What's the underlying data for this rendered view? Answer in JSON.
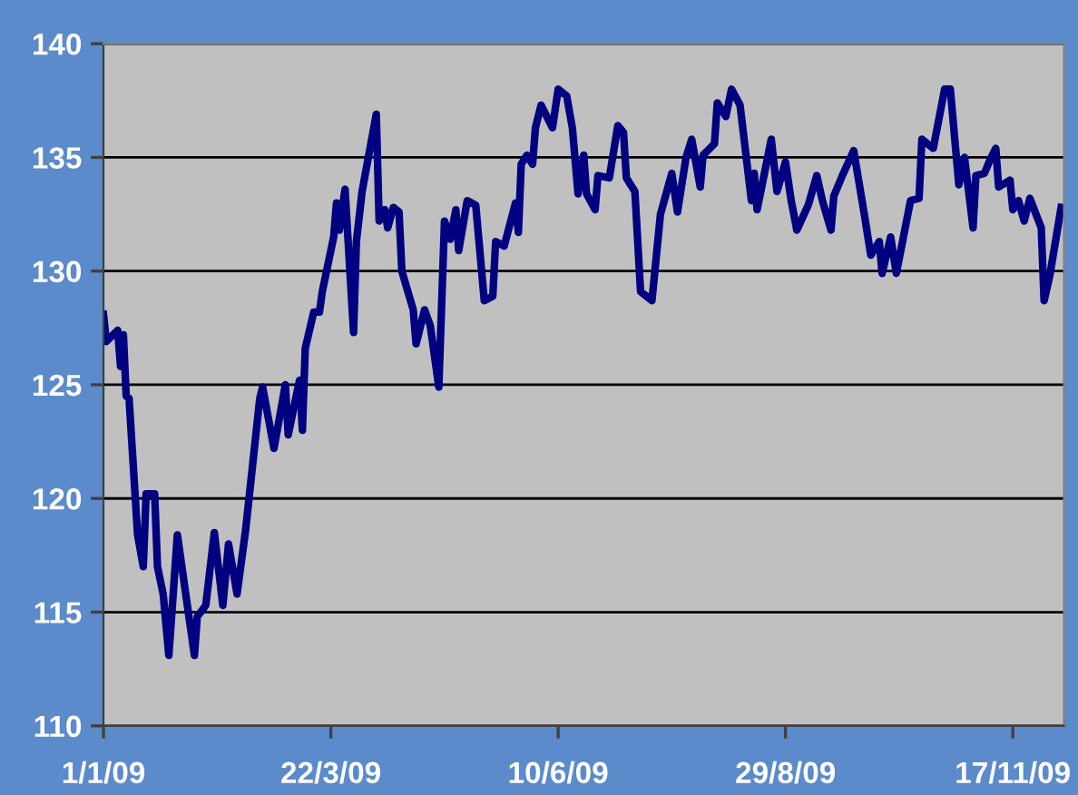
{
  "chart_data": {
    "type": "line",
    "x": [
      "2009-01-01",
      "2009-01-02",
      "2009-01-06",
      "2009-01-07",
      "2009-01-08",
      "2009-01-09",
      "2009-01-10",
      "2009-01-13",
      "2009-01-15",
      "2009-01-16",
      "2009-01-19",
      "2009-01-20",
      "2009-01-22",
      "2009-01-24",
      "2009-01-27",
      "2009-02-02",
      "2009-02-03",
      "2009-02-06",
      "2009-02-09",
      "2009-02-12",
      "2009-02-14",
      "2009-02-17",
      "2009-02-20",
      "2009-02-25",
      "2009-02-26",
      "2009-03-02",
      "2009-03-06",
      "2009-03-07",
      "2009-03-11",
      "2009-03-12",
      "2009-03-13",
      "2009-03-16",
      "2009-03-18",
      "2009-03-19",
      "2009-03-23",
      "2009-03-24",
      "2009-03-25",
      "2009-03-27",
      "2009-03-30",
      "2009-03-31",
      "2009-04-02",
      "2009-04-07",
      "2009-04-08",
      "2009-04-10",
      "2009-04-11",
      "2009-04-13",
      "2009-04-15",
      "2009-04-16",
      "2009-04-20",
      "2009-04-21",
      "2009-04-24",
      "2009-04-26",
      "2009-04-29",
      "2009-05-01",
      "2009-05-03",
      "2009-05-05",
      "2009-05-06",
      "2009-05-09",
      "2009-05-12",
      "2009-05-15",
      "2009-05-18",
      "2009-05-19",
      "2009-05-22",
      "2009-05-26",
      "2009-05-27",
      "2009-05-28",
      "2009-05-30",
      "2009-06-01",
      "2009-06-02",
      "2009-06-04",
      "2009-06-08",
      "2009-06-10",
      "2009-06-13",
      "2009-06-15",
      "2009-06-17",
      "2009-06-19",
      "2009-06-20",
      "2009-06-23",
      "2009-06-24",
      "2009-06-28",
      "2009-07-01",
      "2009-07-03",
      "2009-07-04",
      "2009-07-07",
      "2009-07-09",
      "2009-07-13",
      "2009-07-16",
      "2009-07-20",
      "2009-07-22",
      "2009-07-25",
      "2009-07-27",
      "2009-07-30",
      "2009-07-31",
      "2009-08-04",
      "2009-08-05",
      "2009-08-08",
      "2009-08-10",
      "2009-08-13",
      "2009-08-17",
      "2009-08-18",
      "2009-08-19",
      "2009-08-24",
      "2009-08-26",
      "2009-08-29",
      "2009-08-31",
      "2009-09-02",
      "2009-09-06",
      "2009-09-09",
      "2009-09-11",
      "2009-09-14",
      "2009-09-15",
      "2009-09-18",
      "2009-09-22",
      "2009-09-26",
      "2009-09-28",
      "2009-10-01",
      "2009-10-02",
      "2009-10-05",
      "2009-10-07",
      "2009-10-12",
      "2009-10-15",
      "2009-10-16",
      "2009-10-20",
      "2009-10-24",
      "2009-10-26",
      "2009-10-29",
      "2009-10-31",
      "2009-11-03",
      "2009-11-04",
      "2009-11-07",
      "2009-11-09",
      "2009-11-11",
      "2009-11-12",
      "2009-11-16",
      "2009-11-17",
      "2009-11-19",
      "2009-11-21",
      "2009-11-23",
      "2009-11-27",
      "2009-11-28",
      "2009-11-30",
      "2009-12-04"
    ],
    "series": [
      {
        "color": "#000080",
        "values": [
          128.1,
          126.9,
          127.4,
          125.8,
          127.2,
          124.5,
          124.4,
          118.4,
          117.0,
          120.2,
          120.2,
          117.0,
          115.8,
          113.1,
          118.4,
          113.1,
          114.8,
          115.3,
          118.5,
          115.3,
          118.0,
          115.8,
          118.6,
          124.4,
          124.9,
          122.2,
          125.0,
          122.8,
          125.2,
          123.0,
          126.6,
          128.2,
          128.2,
          129.1,
          131.5,
          133.0,
          131.8,
          133.6,
          127.3,
          131.3,
          133.5,
          136.9,
          132.2,
          132.7,
          131.9,
          132.8,
          132.6,
          130.0,
          128.3,
          126.8,
          128.3,
          127.6,
          124.9,
          132.2,
          131.4,
          132.7,
          130.9,
          133.1,
          132.9,
          128.7,
          128.9,
          131.3,
          131.1,
          133.0,
          131.7,
          134.7,
          135.1,
          134.7,
          136.3,
          137.3,
          136.3,
          138.0,
          137.7,
          136.3,
          133.4,
          135.1,
          133.4,
          132.7,
          134.2,
          134.1,
          136.4,
          136.1,
          134.1,
          133.5,
          129.1,
          128.7,
          132.5,
          134.3,
          132.6,
          135.0,
          135.8,
          133.7,
          135.1,
          135.6,
          137.4,
          136.8,
          138.0,
          137.3,
          133.1,
          134.3,
          132.7,
          135.8,
          133.5,
          134.8,
          133.1,
          131.8,
          132.9,
          134.2,
          133.1,
          131.8,
          133.3,
          134.2,
          135.3,
          132.3,
          130.7,
          131.3,
          129.9,
          131.5,
          129.9,
          133.1,
          133.2,
          135.8,
          135.4,
          138.0,
          138.0,
          133.8,
          135.0,
          131.9,
          134.2,
          134.3,
          134.9,
          135.4,
          133.7,
          134.0,
          132.7,
          133.1,
          132.2,
          133.2,
          131.9,
          128.7,
          129.8,
          132.8
        ]
      }
    ],
    "xlim": [
      "2009-01-01",
      "2009-12-05"
    ],
    "xticks": [
      {
        "value": "2009-01-01",
        "label": "1/1/09"
      },
      {
        "value": "2009-03-22",
        "label": "22/3/09"
      },
      {
        "value": "2009-06-10",
        "label": "10/6/09"
      },
      {
        "value": "2009-08-29",
        "label": "29/8/09"
      },
      {
        "value": "2009-11-17",
        "label": "17/11/09"
      }
    ],
    "ylim": [
      110,
      140
    ],
    "yticks": [
      110,
      115,
      120,
      125,
      130,
      135,
      140
    ],
    "grid": "y",
    "marker": "none",
    "line_style": "solid"
  }
}
